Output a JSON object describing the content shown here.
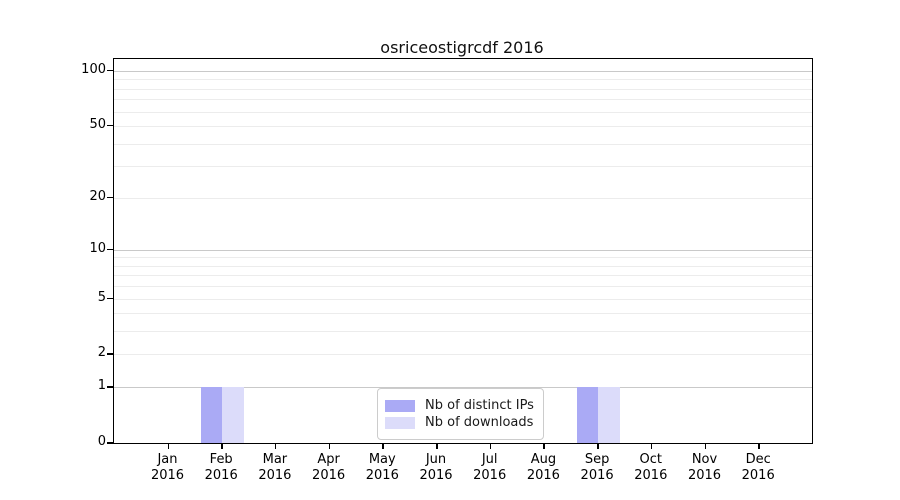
{
  "chart_data": {
    "type": "bar",
    "title": "osriceostigrcdf 2016",
    "months": [
      "Jan",
      "Feb",
      "Mar",
      "Apr",
      "May",
      "Jun",
      "Jul",
      "Aug",
      "Sep",
      "Oct",
      "Nov",
      "Dec"
    ],
    "year_label": "2016",
    "series": [
      {
        "name": "Nb of distinct IPs",
        "color": "#aaaaf5",
        "values": [
          0,
          1,
          0,
          0,
          0,
          0,
          0,
          0,
          1,
          0,
          0,
          0
        ]
      },
      {
        "name": "Nb of downloads",
        "color": "#dcdcfa",
        "values": [
          0,
          1,
          0,
          0,
          0,
          0,
          0,
          0,
          1,
          0,
          0,
          0
        ]
      }
    ],
    "y_scale": "log1p",
    "ylim": [
      0,
      116
    ],
    "y_labeled_ticks": [
      0,
      1,
      2,
      5,
      10,
      20,
      50,
      100
    ],
    "y_major_gridlines": [
      1,
      10,
      100
    ],
    "y_minor_gridlines": [
      2,
      3,
      4,
      5,
      6,
      7,
      8,
      9,
      20,
      30,
      40,
      50,
      60,
      70,
      80,
      90
    ],
    "grid": "horizontal",
    "legend_position": "bottom-center",
    "colors": {
      "axis": "#000000",
      "grid_major": "#c9c9c9",
      "grid_minor": "#ececec",
      "background": "#ffffff"
    }
  }
}
